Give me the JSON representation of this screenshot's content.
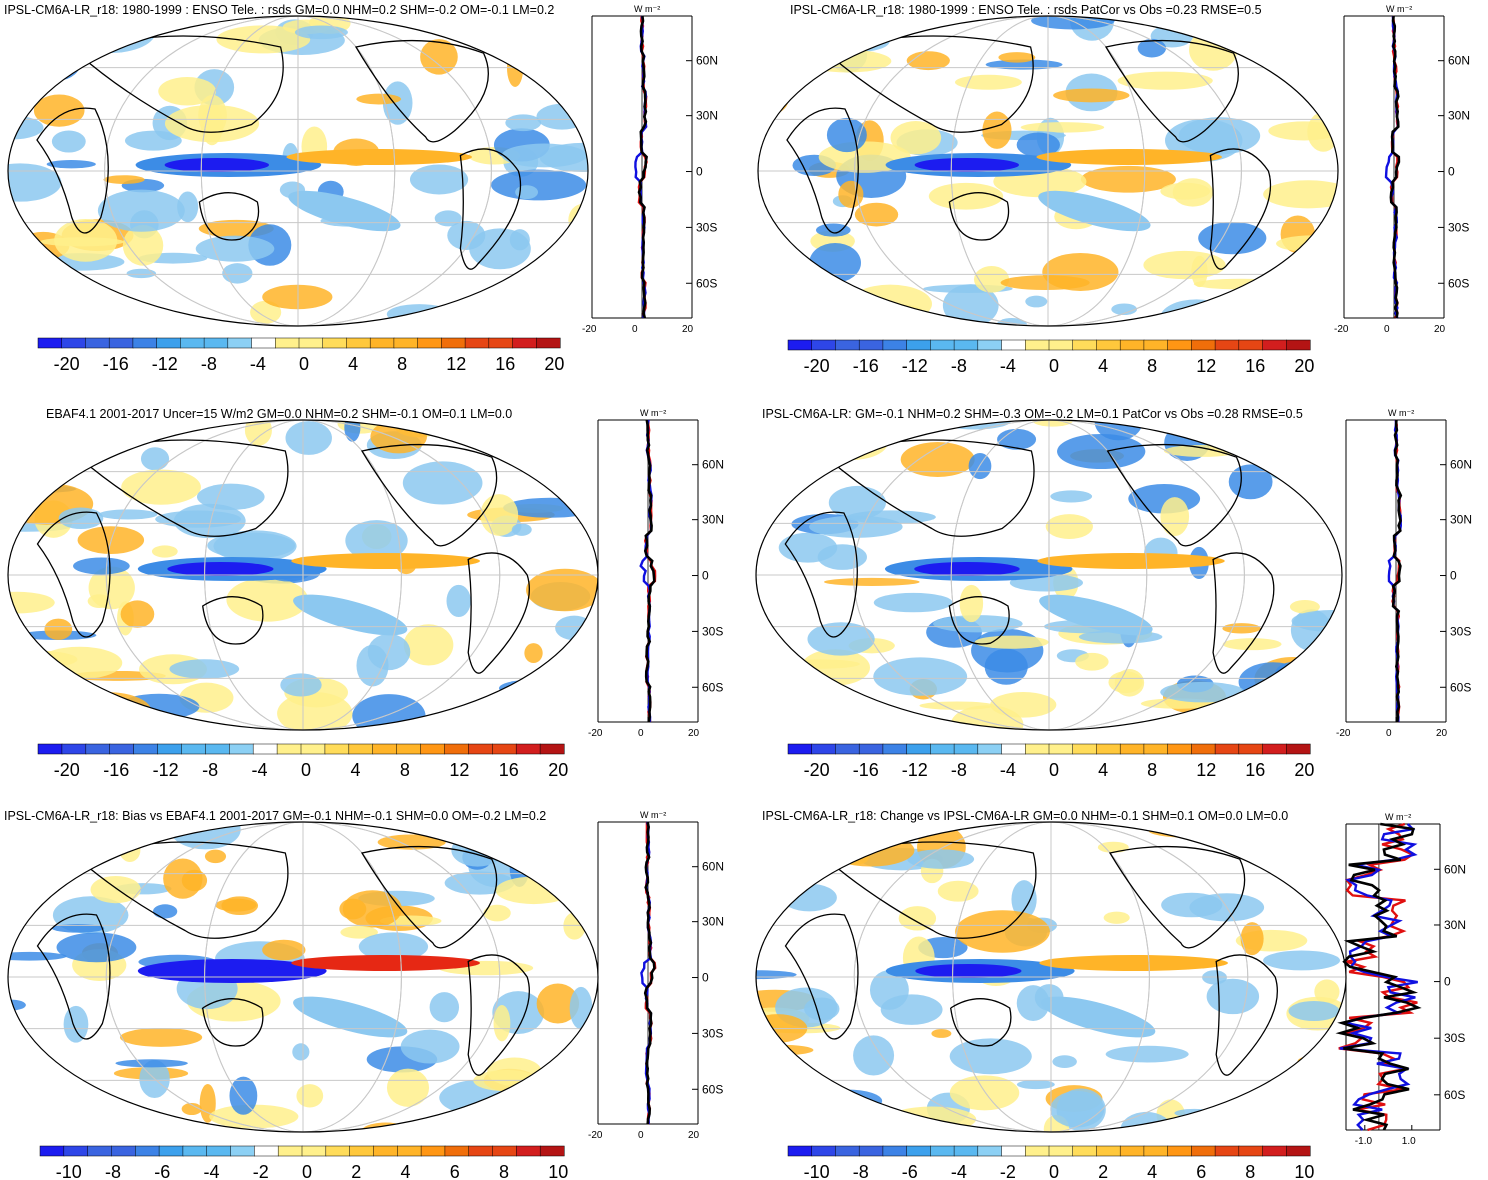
{
  "figure": {
    "colors": {
      "ocean_outline": "#000000",
      "grid": "#c8c8c8",
      "neg_strong": "#1c1cf0",
      "neg_mid": "#3c8ce6",
      "neg_weak": "#8cc8f0",
      "pos_weak": "#fff08c",
      "pos_mid": "#ffb428",
      "pos_strong": "#e62814",
      "profile_model": "#e01010",
      "profile_obs": "#1010e0",
      "profile_mean": "#000000"
    }
  },
  "panels": [
    {
      "id": "p1",
      "title": "IPSL-CM6A-LR_r18: 1980-1999 : ENSO Tele. : rsds GM=0.0 NHM=0.2 SHM=-0.2 OM=-0.1 LM=0.2",
      "colorbar_labels": [
        "-20",
        "-16",
        "-12",
        "-8",
        "-4",
        "0",
        "4",
        "8",
        "12",
        "16",
        "20"
      ],
      "profile_unit": "W m⁻²",
      "lat_labels": [
        "60N",
        "30N",
        "0",
        "30S",
        "60S"
      ],
      "x_labels": [
        "-20",
        "0",
        "20"
      ],
      "profile_values_at_lat": [
        0,
        0.3,
        0.8,
        -0.2,
        -0.5,
        0.4,
        0.2,
        0.6
      ]
    },
    {
      "id": "p2",
      "title": "IPSL-CM6A-LR_r18: 1980-1999 : ENSO Tele. : rsds PatCor vs Obs =0.23 RMSE=0.5",
      "colorbar_labels": [
        "-20",
        "-16",
        "-12",
        "-8",
        "-4",
        "0",
        "4",
        "8",
        "12",
        "16",
        "20"
      ],
      "profile_unit": "W m⁻²",
      "lat_labels": [
        "60N",
        "30N",
        "0",
        "30S",
        "60S"
      ],
      "x_labels": [
        "-20",
        "0",
        "20"
      ],
      "profile_values_at_lat": [
        0,
        0.3,
        0.8,
        -0.2,
        -0.5,
        0.4,
        0.2,
        0.6
      ]
    },
    {
      "id": "p3",
      "title": "EBAF4.1 2001-2017 Uncer=15 W/m2 GM=0.0 NHM=0.2 SHM=-0.1 OM=0.1 LM=0.0",
      "colorbar_labels": [
        "-20",
        "-16",
        "-12",
        "-8",
        "-4",
        "0",
        "4",
        "8",
        "12",
        "16",
        "20"
      ],
      "profile_unit": "W m⁻²",
      "lat_labels": [
        "60N",
        "30N",
        "0",
        "30S",
        "60S"
      ],
      "x_labels": [
        "-20",
        "0",
        "20"
      ],
      "profile_values_at_lat": [
        0,
        0.4,
        0.6,
        -0.4,
        0.3,
        0.2,
        -0.2,
        0.3
      ]
    },
    {
      "id": "p4",
      "title": "IPSL-CM6A-LR: GM=-0.1 NHM=0.2 SHM=-0.3 OM=-0.2 LM=0.1 PatCor vs Obs =0.28 RMSE=0.5",
      "colorbar_labels": [
        "-20",
        "-16",
        "-12",
        "-8",
        "-4",
        "0",
        "4",
        "8",
        "12",
        "16",
        "20"
      ],
      "profile_unit": "W m⁻²",
      "lat_labels": [
        "60N",
        "30N",
        "0",
        "30S",
        "60S"
      ],
      "x_labels": [
        "-20",
        "0",
        "20"
      ],
      "profile_values_at_lat": [
        0,
        0.3,
        0.9,
        -0.3,
        -0.6,
        0.5,
        0.3,
        0.5
      ]
    },
    {
      "id": "p5",
      "title": "IPSL-CM6A-LR_r18: Bias vs EBAF4.1 2001-2017 GM=-0.1 NHM=-0.1 SHM=0.0 OM=-0.2 LM=0.2",
      "colorbar_labels": [
        "-10",
        "-8",
        "-6",
        "-4",
        "-2",
        "0",
        "2",
        "4",
        "6",
        "8",
        "10"
      ],
      "profile_unit": "W m⁻²",
      "lat_labels": [
        "60N",
        "30N",
        "0",
        "30S",
        "60S"
      ],
      "x_labels": [
        "-20",
        "0",
        "20"
      ],
      "profile_values_at_lat": [
        0,
        -0.3,
        0.2,
        0.5,
        -0.4,
        0.6,
        -0.2,
        0.2
      ]
    },
    {
      "id": "p6",
      "title": "IPSL-CM6A-LR_r18: Change vs IPSL-CM6A-LR GM=0.0 NHM=-0.1 SHM=0.1 OM=0.0 LM=0.0",
      "colorbar_labels": [
        "-10",
        "-8",
        "-6",
        "-4",
        "-2",
        "0",
        "2",
        "4",
        "6",
        "8",
        "10"
      ],
      "profile_unit": "W m⁻²",
      "lat_labels": [
        "60N",
        "30N",
        "0",
        "30S",
        "60S"
      ],
      "x_labels": [
        "-1.0",
        "1.0"
      ],
      "profile_values_at_lat": [
        0.6,
        -0.5,
        0.4,
        -0.6,
        0.7,
        -0.8,
        0.5,
        -0.3
      ]
    }
  ]
}
